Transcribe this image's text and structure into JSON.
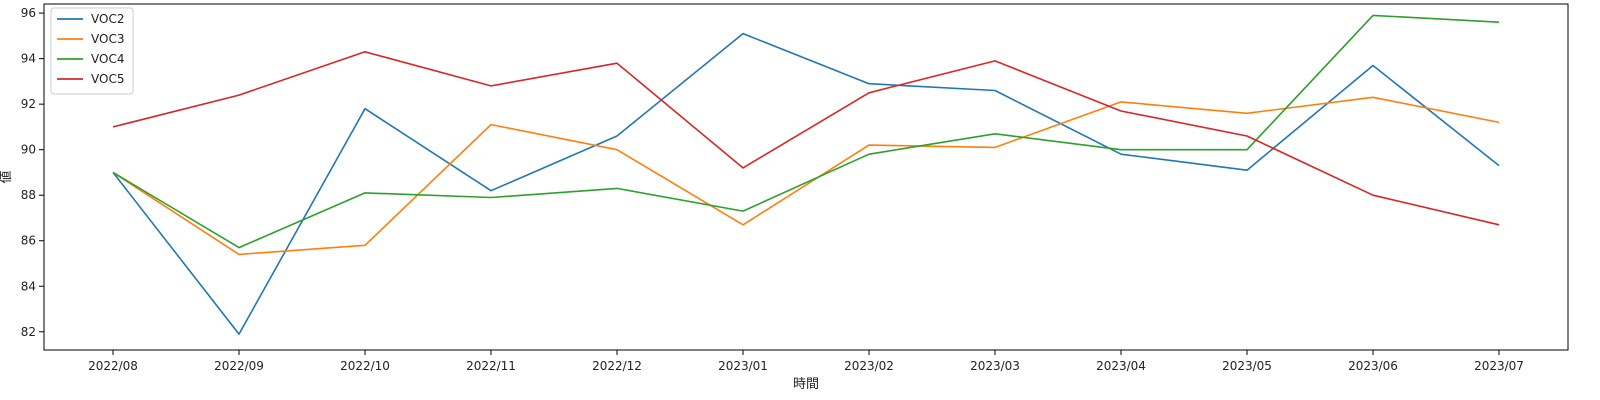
{
  "chart_data": {
    "type": "line",
    "title": "",
    "xlabel": "時間",
    "ylabel": "値",
    "categories": [
      "2022/08",
      "2022/09",
      "2022/10",
      "2022/11",
      "2022/12",
      "2023/01",
      "2023/02",
      "2023/03",
      "2023/04",
      "2023/05",
      "2023/06",
      "2023/07"
    ],
    "ylim": [
      81.2,
      96.4
    ],
    "yticks": [
      82,
      84,
      86,
      88,
      90,
      92,
      94,
      96
    ],
    "grid": false,
    "legend_position": "top-left",
    "series": [
      {
        "name": "VOC2",
        "color": "#1f77b4",
        "values": [
          89.0,
          81.9,
          91.8,
          88.2,
          90.6,
          95.1,
          92.9,
          92.6,
          89.8,
          89.1,
          93.7,
          89.3
        ]
      },
      {
        "name": "VOC3",
        "color": "#ff7f0e",
        "values": [
          89.0,
          85.4,
          85.8,
          91.1,
          90.0,
          86.7,
          90.2,
          90.1,
          92.1,
          91.6,
          92.3,
          91.2
        ]
      },
      {
        "name": "VOC4",
        "color": "#2ca02c",
        "values": [
          89.0,
          85.7,
          88.1,
          87.9,
          88.3,
          87.3,
          89.8,
          90.7,
          90.0,
          90.0,
          95.9,
          95.6
        ]
      },
      {
        "name": "VOC5",
        "color": "#d62728",
        "values": [
          91.0,
          92.4,
          94.3,
          92.8,
          93.8,
          89.2,
          92.5,
          93.9,
          91.7,
          90.6,
          88.0,
          86.7
        ]
      }
    ]
  }
}
